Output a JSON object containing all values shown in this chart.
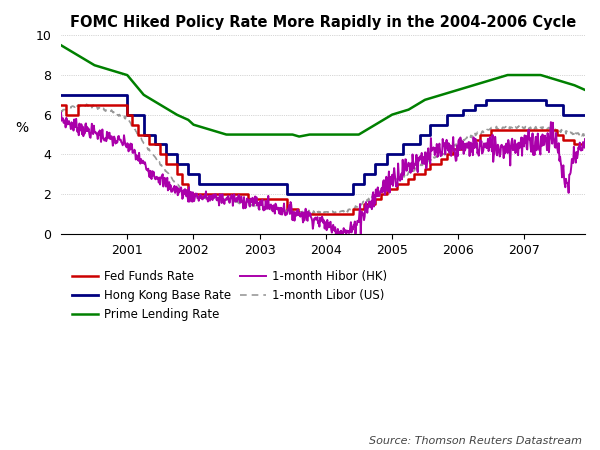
{
  "title": "FOMC Hiked Policy Rate More Rapidly in the 2004-2006 Cycle",
  "ylabel": "%",
  "source": "Source: Thomson Reuters Datastream",
  "ylim": [
    0,
    10
  ],
  "yticks": [
    0,
    2,
    4,
    6,
    8,
    10
  ],
  "xlim_start": 2000.0,
  "xlim_end": 2007.92,
  "xtick_labels": [
    "2001",
    "2002",
    "2003",
    "2004",
    "2005",
    "2006",
    "2007"
  ],
  "xtick_positions": [
    2001,
    2002,
    2003,
    2004,
    2005,
    2006,
    2007
  ],
  "background_color": "#ffffff",
  "grid_color": "#b0b0b0",
  "series": {
    "fed_funds": {
      "color": "#cc0000",
      "label": "Fed Funds Rate",
      "linewidth": 1.8
    },
    "hk_base": {
      "color": "#000080",
      "label": "Hong Kong Base Rate",
      "linewidth": 2.0
    },
    "prime": {
      "color": "#008000",
      "label": "Prime Lending Rate",
      "linewidth": 1.8
    },
    "hibor": {
      "color": "#AA00AA",
      "label": "1-month Hibor (HK)",
      "linewidth": 1.4
    },
    "libor": {
      "color": "#999999",
      "label": "1-month Libor (US)",
      "linewidth": 1.2,
      "linestyle": "--"
    }
  },
  "fed_funds_steps": [
    [
      2000.0,
      6.5
    ],
    [
      2000.08,
      6.5
    ],
    [
      2000.08,
      6.0
    ],
    [
      2000.25,
      6.0
    ],
    [
      2000.25,
      6.5
    ],
    [
      2001.0,
      6.5
    ],
    [
      2001.0,
      6.0
    ],
    [
      2001.08,
      6.0
    ],
    [
      2001.08,
      5.5
    ],
    [
      2001.17,
      5.5
    ],
    [
      2001.17,
      5.0
    ],
    [
      2001.33,
      5.0
    ],
    [
      2001.33,
      4.5
    ],
    [
      2001.5,
      4.5
    ],
    [
      2001.5,
      4.0
    ],
    [
      2001.58,
      4.0
    ],
    [
      2001.58,
      3.5
    ],
    [
      2001.75,
      3.5
    ],
    [
      2001.75,
      3.0
    ],
    [
      2001.83,
      3.0
    ],
    [
      2001.83,
      2.5
    ],
    [
      2001.92,
      2.5
    ],
    [
      2001.92,
      2.0
    ],
    [
      2002.83,
      2.0
    ],
    [
      2002.83,
      1.75
    ],
    [
      2003.42,
      1.75
    ],
    [
      2003.42,
      1.25
    ],
    [
      2003.58,
      1.25
    ],
    [
      2003.58,
      1.0
    ],
    [
      2004.42,
      1.0
    ],
    [
      2004.42,
      1.25
    ],
    [
      2004.58,
      1.25
    ],
    [
      2004.58,
      1.5
    ],
    [
      2004.75,
      1.5
    ],
    [
      2004.75,
      1.75
    ],
    [
      2004.83,
      1.75
    ],
    [
      2004.83,
      2.0
    ],
    [
      2004.92,
      2.0
    ],
    [
      2004.92,
      2.25
    ],
    [
      2005.08,
      2.25
    ],
    [
      2005.08,
      2.5
    ],
    [
      2005.25,
      2.5
    ],
    [
      2005.25,
      2.75
    ],
    [
      2005.33,
      2.75
    ],
    [
      2005.33,
      3.0
    ],
    [
      2005.5,
      3.0
    ],
    [
      2005.5,
      3.25
    ],
    [
      2005.58,
      3.25
    ],
    [
      2005.58,
      3.5
    ],
    [
      2005.75,
      3.5
    ],
    [
      2005.75,
      3.75
    ],
    [
      2005.83,
      3.75
    ],
    [
      2005.83,
      4.0
    ],
    [
      2005.92,
      4.0
    ],
    [
      2005.92,
      4.25
    ],
    [
      2006.08,
      4.25
    ],
    [
      2006.08,
      4.5
    ],
    [
      2006.25,
      4.5
    ],
    [
      2006.25,
      4.75
    ],
    [
      2006.33,
      4.75
    ],
    [
      2006.33,
      5.0
    ],
    [
      2006.5,
      5.0
    ],
    [
      2006.5,
      5.25
    ],
    [
      2007.5,
      5.25
    ],
    [
      2007.5,
      5.0
    ],
    [
      2007.58,
      5.0
    ],
    [
      2007.58,
      4.75
    ],
    [
      2007.75,
      4.75
    ],
    [
      2007.75,
      4.5
    ],
    [
      2007.92,
      4.5
    ]
  ],
  "hk_base_steps": [
    [
      2000.0,
      7.0
    ],
    [
      2001.0,
      7.0
    ],
    [
      2001.0,
      6.0
    ],
    [
      2001.25,
      6.0
    ],
    [
      2001.25,
      5.0
    ],
    [
      2001.42,
      5.0
    ],
    [
      2001.42,
      4.5
    ],
    [
      2001.58,
      4.5
    ],
    [
      2001.58,
      4.0
    ],
    [
      2001.75,
      4.0
    ],
    [
      2001.75,
      3.5
    ],
    [
      2001.92,
      3.5
    ],
    [
      2001.92,
      3.0
    ],
    [
      2002.08,
      3.0
    ],
    [
      2002.08,
      2.5
    ],
    [
      2003.42,
      2.5
    ],
    [
      2003.42,
      2.0
    ],
    [
      2004.42,
      2.0
    ],
    [
      2004.42,
      2.5
    ],
    [
      2004.58,
      2.5
    ],
    [
      2004.58,
      3.0
    ],
    [
      2004.75,
      3.0
    ],
    [
      2004.75,
      3.5
    ],
    [
      2004.92,
      3.5
    ],
    [
      2004.92,
      4.0
    ],
    [
      2005.17,
      4.0
    ],
    [
      2005.17,
      4.5
    ],
    [
      2005.42,
      4.5
    ],
    [
      2005.42,
      5.0
    ],
    [
      2005.58,
      5.0
    ],
    [
      2005.58,
      5.5
    ],
    [
      2005.83,
      5.5
    ],
    [
      2005.83,
      6.0
    ],
    [
      2006.08,
      6.0
    ],
    [
      2006.08,
      6.25
    ],
    [
      2006.25,
      6.25
    ],
    [
      2006.25,
      6.5
    ],
    [
      2006.42,
      6.5
    ],
    [
      2006.42,
      6.75
    ],
    [
      2007.33,
      6.75
    ],
    [
      2007.33,
      6.5
    ],
    [
      2007.58,
      6.5
    ],
    [
      2007.58,
      6.0
    ],
    [
      2007.92,
      6.0
    ]
  ],
  "prime_pts": [
    [
      2000.0,
      9.5
    ],
    [
      2000.5,
      8.5
    ],
    [
      2001.0,
      8.0
    ],
    [
      2001.25,
      7.0
    ],
    [
      2001.5,
      6.5
    ],
    [
      2001.75,
      6.0
    ],
    [
      2001.92,
      5.75
    ],
    [
      2002.0,
      5.5
    ],
    [
      2002.25,
      5.25
    ],
    [
      2002.5,
      5.0
    ],
    [
      2003.0,
      5.0
    ],
    [
      2003.5,
      5.0
    ],
    [
      2003.6,
      4.9
    ],
    [
      2003.75,
      5.0
    ],
    [
      2004.0,
      5.0
    ],
    [
      2004.42,
      5.0
    ],
    [
      2004.5,
      5.0
    ],
    [
      2004.75,
      5.5
    ],
    [
      2005.0,
      6.0
    ],
    [
      2005.25,
      6.25
    ],
    [
      2005.5,
      6.75
    ],
    [
      2005.75,
      7.0
    ],
    [
      2006.0,
      7.25
    ],
    [
      2006.25,
      7.5
    ],
    [
      2006.5,
      7.75
    ],
    [
      2006.75,
      8.0
    ],
    [
      2007.0,
      8.0
    ],
    [
      2007.25,
      8.0
    ],
    [
      2007.5,
      7.75
    ],
    [
      2007.75,
      7.5
    ],
    [
      2007.92,
      7.25
    ]
  ],
  "hibor_base": [
    [
      2000.0,
      5.8
    ],
    [
      2000.17,
      5.5
    ],
    [
      2000.33,
      5.3
    ],
    [
      2000.5,
      5.1
    ],
    [
      2000.75,
      4.8
    ],
    [
      2001.0,
      4.5
    ],
    [
      2001.17,
      3.8
    ],
    [
      2001.33,
      3.2
    ],
    [
      2001.5,
      2.8
    ],
    [
      2001.67,
      2.3
    ],
    [
      2001.83,
      2.1
    ],
    [
      2002.0,
      1.9
    ],
    [
      2002.25,
      1.8
    ],
    [
      2002.5,
      1.75
    ],
    [
      2002.75,
      1.7
    ],
    [
      2003.0,
      1.5
    ],
    [
      2003.25,
      1.3
    ],
    [
      2003.5,
      1.1
    ],
    [
      2003.75,
      0.9
    ],
    [
      2004.0,
      0.5
    ],
    [
      2004.17,
      0.2
    ],
    [
      2004.25,
      0.15
    ],
    [
      2004.33,
      0.05
    ],
    [
      2004.42,
      0.3
    ],
    [
      2004.5,
      0.8
    ],
    [
      2004.67,
      1.5
    ],
    [
      2004.83,
      2.2
    ],
    [
      2005.0,
      2.8
    ],
    [
      2005.17,
      3.2
    ],
    [
      2005.33,
      3.6
    ],
    [
      2005.5,
      3.9
    ],
    [
      2005.67,
      4.1
    ],
    [
      2005.83,
      4.2
    ],
    [
      2006.0,
      4.3
    ],
    [
      2006.25,
      4.4
    ],
    [
      2006.5,
      4.35
    ],
    [
      2006.75,
      4.4
    ],
    [
      2007.0,
      4.5
    ],
    [
      2007.17,
      4.6
    ],
    [
      2007.33,
      4.7
    ],
    [
      2007.42,
      5.0
    ],
    [
      2007.5,
      4.5
    ],
    [
      2007.58,
      3.0
    ],
    [
      2007.67,
      2.5
    ],
    [
      2007.75,
      4.0
    ],
    [
      2007.92,
      4.5
    ]
  ],
  "libor_base": [
    [
      2000.0,
      6.2
    ],
    [
      2000.17,
      6.4
    ],
    [
      2000.33,
      6.5
    ],
    [
      2000.5,
      6.4
    ],
    [
      2000.75,
      6.2
    ],
    [
      2001.0,
      5.8
    ],
    [
      2001.17,
      5.0
    ],
    [
      2001.33,
      4.2
    ],
    [
      2001.5,
      3.5
    ],
    [
      2001.67,
      2.8
    ],
    [
      2001.83,
      2.2
    ],
    [
      2002.0,
      1.9
    ],
    [
      2002.25,
      1.8
    ],
    [
      2002.5,
      1.75
    ],
    [
      2002.75,
      1.5
    ],
    [
      2003.0,
      1.35
    ],
    [
      2003.25,
      1.2
    ],
    [
      2003.5,
      1.1
    ],
    [
      2003.75,
      1.1
    ],
    [
      2004.0,
      1.1
    ],
    [
      2004.17,
      1.1
    ],
    [
      2004.33,
      1.15
    ],
    [
      2004.5,
      1.4
    ],
    [
      2004.67,
      1.8
    ],
    [
      2004.83,
      2.2
    ],
    [
      2005.0,
      2.6
    ],
    [
      2005.17,
      2.9
    ],
    [
      2005.33,
      3.2
    ],
    [
      2005.5,
      3.6
    ],
    [
      2005.67,
      3.9
    ],
    [
      2005.83,
      4.1
    ],
    [
      2006.0,
      4.6
    ],
    [
      2006.25,
      5.0
    ],
    [
      2006.5,
      5.3
    ],
    [
      2006.75,
      5.35
    ],
    [
      2007.0,
      5.35
    ],
    [
      2007.25,
      5.35
    ],
    [
      2007.42,
      5.3
    ],
    [
      2007.5,
      5.2
    ],
    [
      2007.67,
      5.1
    ],
    [
      2007.92,
      5.0
    ]
  ]
}
